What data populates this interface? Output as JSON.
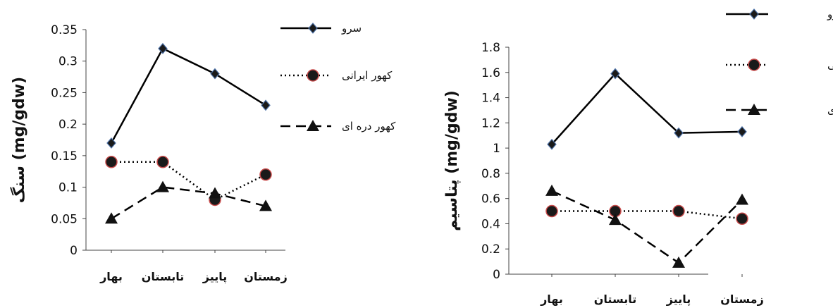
{
  "chart_data": [
    {
      "type": "line",
      "ylabel": "سنگ (mg/gdw)",
      "categories": [
        "بهار",
        "تابستان",
        "پاییز",
        "زمستان"
      ],
      "ylim": [
        0,
        0.35
      ],
      "yticks": [
        "0",
        "0.05",
        "0.1",
        "0.15",
        "0.2",
        "0.25",
        "0.3",
        "0.35"
      ],
      "grid": false,
      "legend": "right",
      "series": [
        {
          "name": "سرو",
          "values": [
            0.17,
            0.32,
            0.28,
            0.23
          ],
          "marker": "diamond",
          "dash": "solid",
          "color": "#000000"
        },
        {
          "name": "کهور ایرانی",
          "values": [
            0.14,
            0.14,
            0.08,
            0.12
          ],
          "marker": "circle",
          "dash": "dotted",
          "color": "#000000"
        },
        {
          "name": "کهور دره ای",
          "values": [
            0.05,
            0.1,
            0.09,
            0.07
          ],
          "marker": "triangle",
          "dash": "dashed",
          "color": "#000000"
        }
      ]
    },
    {
      "type": "line",
      "ylabel": "پتاسیم (mg/gdw)",
      "categories": [
        "بهار",
        "تابستان",
        "پاییز",
        "زمستان"
      ],
      "ylim": [
        0,
        1.8
      ],
      "yticks": [
        "0",
        "0.2",
        "0.4",
        "0.6",
        "0.8",
        "1",
        "1.2",
        "1.4",
        "1.6",
        "1.8"
      ],
      "grid": false,
      "legend": "right",
      "series": [
        {
          "name": "سرو",
          "values": [
            1.03,
            1.59,
            1.12,
            1.13
          ],
          "marker": "diamond",
          "dash": "solid",
          "color": "#000000"
        },
        {
          "name": "کهور ایرانی",
          "values": [
            0.5,
            0.5,
            0.5,
            0.44
          ],
          "marker": "circle",
          "dash": "dotted",
          "color": "#000000"
        },
        {
          "name": "کهور دره ای",
          "values": [
            0.66,
            0.43,
            0.09,
            0.59
          ],
          "marker": "triangle",
          "dash": "dashed",
          "color": "#000000"
        }
      ]
    }
  ]
}
